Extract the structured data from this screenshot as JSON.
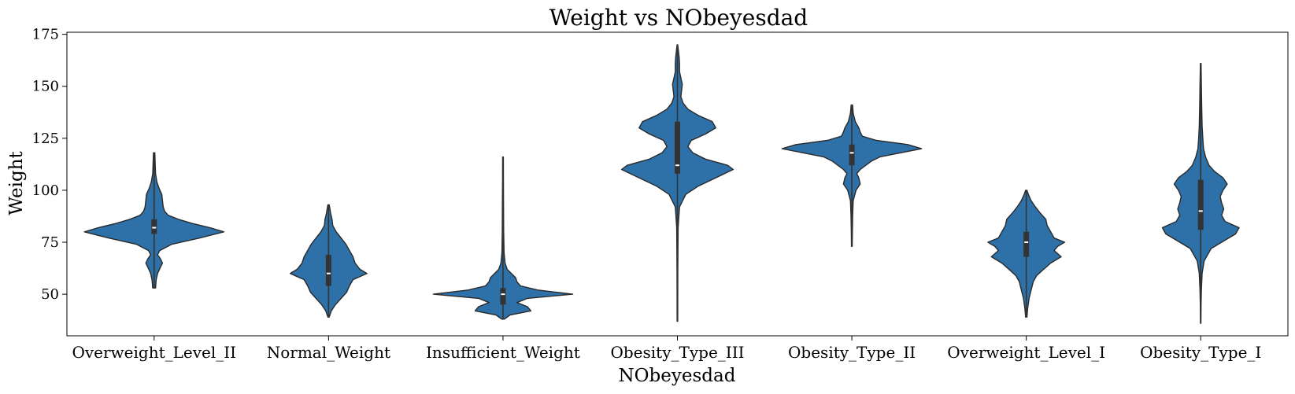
{
  "chart_data": {
    "type": "violin",
    "title": "Weight vs NObeyesdad",
    "xlabel": "NObeyesdad",
    "ylabel": "Weight",
    "ylim": [
      30,
      176
    ],
    "yticks": [
      50,
      75,
      100,
      125,
      150,
      175
    ],
    "fill_color": "#2d71a8",
    "edge_color": "#2a2a2a",
    "categories": [
      "Overweight_Level_II",
      "Normal_Weight",
      "Insufficient_Weight",
      "Obesity_Type_III",
      "Obesity_Type_II",
      "Overweight_Level_I",
      "Obesity_Type_I"
    ],
    "violins": [
      {
        "category": "Overweight_Level_II",
        "min": 53,
        "q1": 79,
        "median": 82,
        "q3": 86,
        "max": 118,
        "profile": [
          [
            53,
            0.02
          ],
          [
            57,
            0.03
          ],
          [
            60,
            0.05
          ],
          [
            63,
            0.09
          ],
          [
            65,
            0.12
          ],
          [
            67,
            0.09
          ],
          [
            69,
            0.05
          ],
          [
            71,
            0.08
          ],
          [
            74,
            0.25
          ],
          [
            77,
            0.65
          ],
          [
            80,
            1.0
          ],
          [
            82,
            0.8
          ],
          [
            84,
            0.55
          ],
          [
            86,
            0.35
          ],
          [
            88,
            0.2
          ],
          [
            90,
            0.15
          ],
          [
            92,
            0.13
          ],
          [
            95,
            0.12
          ],
          [
            98,
            0.11
          ],
          [
            101,
            0.07
          ],
          [
            104,
            0.04
          ],
          [
            108,
            0.02
          ],
          [
            113,
            0.015
          ],
          [
            118,
            0.01
          ]
        ]
      },
      {
        "category": "Normal_Weight",
        "min": 39,
        "q1": 54,
        "median": 60,
        "q3": 69,
        "max": 93,
        "profile": [
          [
            39,
            0.01
          ],
          [
            42,
            0.04
          ],
          [
            45,
            0.1
          ],
          [
            48,
            0.18
          ],
          [
            51,
            0.26
          ],
          [
            54,
            0.3
          ],
          [
            57,
            0.35
          ],
          [
            60,
            0.55
          ],
          [
            62,
            0.45
          ],
          [
            65,
            0.38
          ],
          [
            68,
            0.35
          ],
          [
            71,
            0.3
          ],
          [
            74,
            0.25
          ],
          [
            77,
            0.18
          ],
          [
            80,
            0.11
          ],
          [
            83,
            0.06
          ],
          [
            86,
            0.05
          ],
          [
            89,
            0.03
          ],
          [
            93,
            0.01
          ]
        ]
      },
      {
        "category": "Insufficient_Weight",
        "min": 38,
        "q1": 45,
        "median": 50,
        "q3": 53,
        "max": 116,
        "profile": [
          [
            38,
            0.02
          ],
          [
            40,
            0.1
          ],
          [
            42,
            0.4
          ],
          [
            44,
            0.35
          ],
          [
            46,
            0.2
          ],
          [
            48,
            0.35
          ],
          [
            50,
            1.0
          ],
          [
            52,
            0.5
          ],
          [
            54,
            0.25
          ],
          [
            56,
            0.2
          ],
          [
            58,
            0.18
          ],
          [
            60,
            0.12
          ],
          [
            62,
            0.06
          ],
          [
            65,
            0.03
          ],
          [
            70,
            0.015
          ],
          [
            80,
            0.01
          ],
          [
            95,
            0.008
          ],
          [
            105,
            0.006
          ],
          [
            116,
            0.005
          ]
        ]
      },
      {
        "category": "Obesity_Type_III",
        "min": 37,
        "q1": 108,
        "median": 112,
        "q3": 133,
        "max": 170,
        "profile": [
          [
            37,
            0.004
          ],
          [
            60,
            0.006
          ],
          [
            82,
            0.01
          ],
          [
            92,
            0.03
          ],
          [
            98,
            0.12
          ],
          [
            102,
            0.3
          ],
          [
            106,
            0.55
          ],
          [
            110,
            0.8
          ],
          [
            112,
            0.72
          ],
          [
            115,
            0.4
          ],
          [
            118,
            0.22
          ],
          [
            121,
            0.15
          ],
          [
            124,
            0.2
          ],
          [
            127,
            0.4
          ],
          [
            130,
            0.55
          ],
          [
            133,
            0.5
          ],
          [
            136,
            0.3
          ],
          [
            139,
            0.15
          ],
          [
            142,
            0.08
          ],
          [
            145,
            0.05
          ],
          [
            148,
            0.06
          ],
          [
            151,
            0.07
          ],
          [
            154,
            0.05
          ],
          [
            157,
            0.03
          ],
          [
            161,
            0.03
          ],
          [
            164,
            0.025
          ],
          [
            167,
            0.015
          ],
          [
            170,
            0.005
          ]
        ]
      },
      {
        "category": "Obesity_Type_II",
        "min": 73,
        "q1": 112,
        "median": 118,
        "q3": 122,
        "max": 141,
        "profile": [
          [
            73,
            0.005
          ],
          [
            80,
            0.008
          ],
          [
            88,
            0.012
          ],
          [
            95,
            0.02
          ],
          [
            100,
            0.06
          ],
          [
            103,
            0.12
          ],
          [
            106,
            0.1
          ],
          [
            108,
            0.07
          ],
          [
            110,
            0.12
          ],
          [
            112,
            0.2
          ],
          [
            114,
            0.28
          ],
          [
            116,
            0.4
          ],
          [
            118,
            0.7
          ],
          [
            120,
            1.0
          ],
          [
            122,
            0.8
          ],
          [
            124,
            0.35
          ],
          [
            126,
            0.15
          ],
          [
            128,
            0.12
          ],
          [
            130,
            0.1
          ],
          [
            133,
            0.05
          ],
          [
            137,
            0.02
          ],
          [
            141,
            0.01
          ]
        ]
      },
      {
        "category": "Overweight_Level_I",
        "min": 39,
        "q1": 68,
        "median": 75,
        "q3": 80,
        "max": 100,
        "profile": [
          [
            39,
            0.01
          ],
          [
            43,
            0.02
          ],
          [
            48,
            0.04
          ],
          [
            52,
            0.07
          ],
          [
            56,
            0.1
          ],
          [
            59,
            0.15
          ],
          [
            62,
            0.25
          ],
          [
            65,
            0.35
          ],
          [
            68,
            0.5
          ],
          [
            71,
            0.4
          ],
          [
            73,
            0.45
          ],
          [
            75,
            0.55
          ],
          [
            77,
            0.4
          ],
          [
            80,
            0.35
          ],
          [
            83,
            0.3
          ],
          [
            86,
            0.28
          ],
          [
            89,
            0.2
          ],
          [
            92,
            0.13
          ],
          [
            95,
            0.07
          ],
          [
            98,
            0.03
          ],
          [
            100,
            0.01
          ]
        ]
      },
      {
        "category": "Obesity_Type_I",
        "min": 36,
        "q1": 81,
        "median": 90,
        "q3": 105,
        "max": 161,
        "profile": [
          [
            36,
            0.003
          ],
          [
            45,
            0.006
          ],
          [
            52,
            0.01
          ],
          [
            60,
            0.02
          ],
          [
            66,
            0.05
          ],
          [
            72,
            0.15
          ],
          [
            76,
            0.35
          ],
          [
            79,
            0.5
          ],
          [
            82,
            0.55
          ],
          [
            85,
            0.35
          ],
          [
            88,
            0.3
          ],
          [
            91,
            0.33
          ],
          [
            94,
            0.3
          ],
          [
            97,
            0.28
          ],
          [
            100,
            0.32
          ],
          [
            103,
            0.38
          ],
          [
            106,
            0.32
          ],
          [
            109,
            0.2
          ],
          [
            112,
            0.12
          ],
          [
            116,
            0.07
          ],
          [
            120,
            0.04
          ],
          [
            125,
            0.03
          ],
          [
            131,
            0.02
          ],
          [
            140,
            0.015
          ],
          [
            150,
            0.01
          ],
          [
            161,
            0.005
          ]
        ]
      }
    ]
  }
}
